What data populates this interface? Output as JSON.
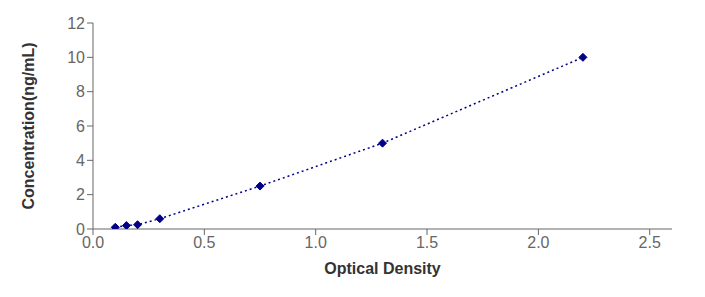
{
  "chart_data": {
    "type": "line",
    "x": [
      0.1,
      0.15,
      0.2,
      0.3,
      0.75,
      1.3,
      2.2
    ],
    "values": [
      0.1,
      0.2,
      0.25,
      0.6,
      2.5,
      5.0,
      10.0
    ],
    "xlabel": "Optical Density",
    "ylabel": "Concentration(ng/mL)",
    "xlim": [
      0.0,
      2.6
    ],
    "ylim": [
      0,
      12
    ],
    "xticks": [
      {
        "value": 0,
        "label": "0.0"
      },
      0.5,
      {
        "value": 1.0,
        "label": "1.0"
      },
      1.5,
      {
        "value": 2.0,
        "label": "2.0"
      },
      2.5
    ],
    "yticks": [
      0,
      2,
      4,
      6,
      8,
      10,
      12
    ],
    "color": "#00008B",
    "marker": "diamond",
    "line_style": "dotted",
    "grid": false
  }
}
